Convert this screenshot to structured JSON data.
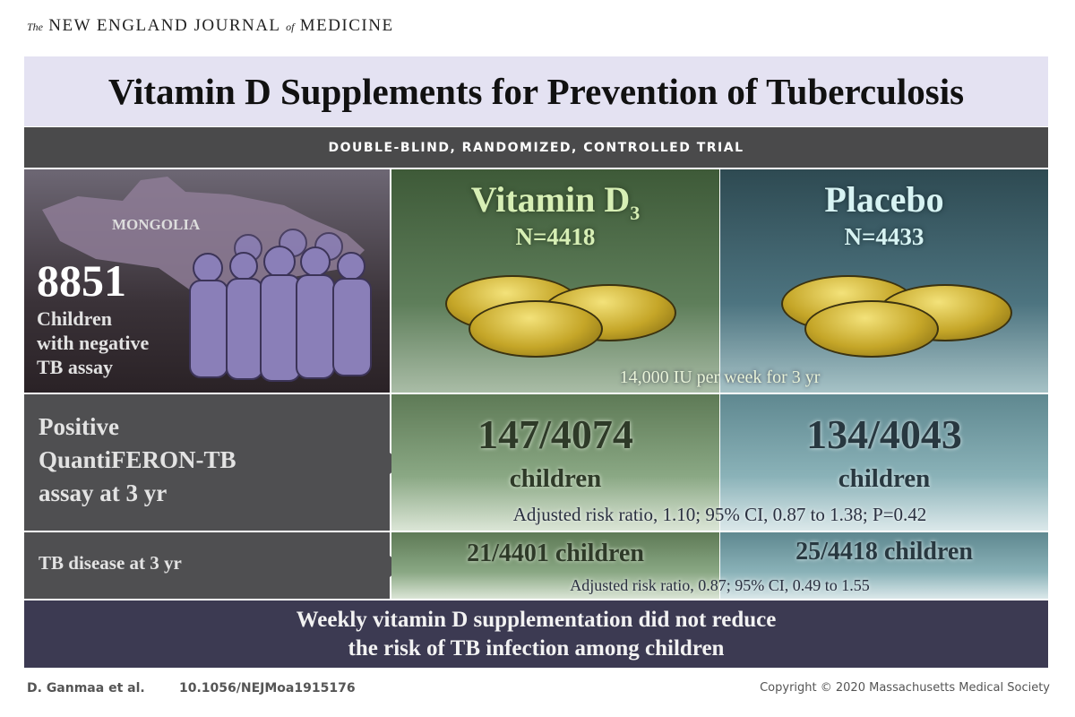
{
  "journal": {
    "the": "The",
    "name": "NEW ENGLAND JOURNAL",
    "of": "of",
    "medicine": "MEDICINE"
  },
  "title": "Vitamin D Supplements for Prevention of Tuberculosis",
  "design": "DOUBLE-BLIND, RANDOMIZED, CONTROLLED TRIAL",
  "population": {
    "country": "MONGOLIA",
    "count": "8851",
    "line1": "Children",
    "line2": "with negative",
    "line3": "TB assay"
  },
  "arms": [
    {
      "name": "Vitamin D",
      "subscript": "3",
      "n": "N=4418",
      "color": "#5e7e5a"
    },
    {
      "name": "Placebo",
      "n": "N=4433",
      "color": "#4d7480"
    }
  ],
  "dose": "14,000 IU per week for 3 yr",
  "outcomes": [
    {
      "label_lines": [
        "Positive",
        "QuantiFERON-TB",
        "assay at 3 yr"
      ],
      "vitamin": "147/4074",
      "placebo": "134/4043",
      "unit": "children",
      "stat": "Adjusted risk ratio, 1.10; 95% CI, 0.87 to 1.38; P=0.42"
    },
    {
      "label": "TB disease at 3 yr",
      "vitamin": "21/4401 children",
      "placebo": "25/4418 children",
      "stat": "Adjusted risk ratio, 0.87; 95% CI, 0.49 to 1.55"
    }
  ],
  "conclusion": {
    "line1": "Weekly vitamin D supplementation did not reduce",
    "line2": "the risk of TB infection among children"
  },
  "footer": {
    "authors": "D. Ganmaa et al.",
    "doi": "10.1056/NEJMoa1915176",
    "copyright": "Copyright © 2020 Massachusetts Medical Society"
  }
}
